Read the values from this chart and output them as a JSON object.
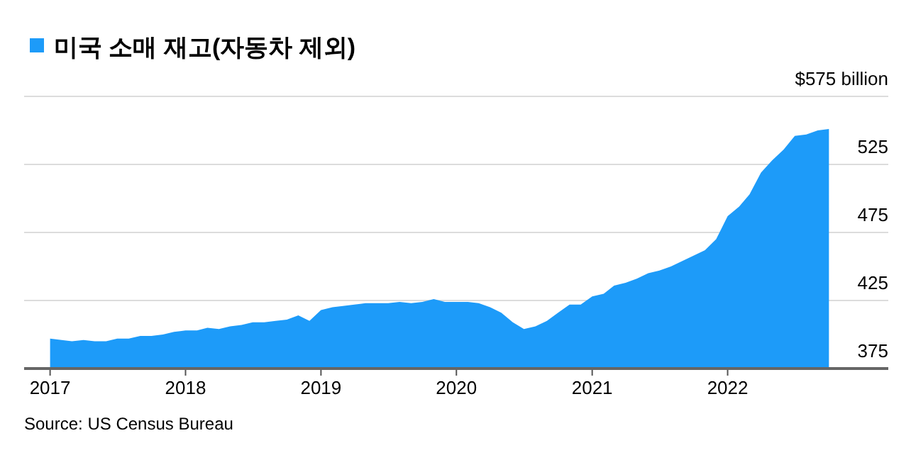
{
  "chart_data": {
    "type": "area",
    "x": [
      "2017-01",
      "2017-02",
      "2017-03",
      "2017-04",
      "2017-05",
      "2017-06",
      "2017-07",
      "2017-08",
      "2017-09",
      "2017-10",
      "2017-11",
      "2017-12",
      "2018-01",
      "2018-02",
      "2018-03",
      "2018-04",
      "2018-05",
      "2018-06",
      "2018-07",
      "2018-08",
      "2018-09",
      "2018-10",
      "2018-11",
      "2018-12",
      "2019-01",
      "2019-02",
      "2019-03",
      "2019-04",
      "2019-05",
      "2019-06",
      "2019-07",
      "2019-08",
      "2019-09",
      "2019-10",
      "2019-11",
      "2019-12",
      "2020-01",
      "2020-02",
      "2020-03",
      "2020-04",
      "2020-05",
      "2020-06",
      "2020-07",
      "2020-08",
      "2020-09",
      "2020-10",
      "2020-11",
      "2020-12",
      "2021-01",
      "2021-02",
      "2021-03",
      "2021-04",
      "2021-05",
      "2021-06",
      "2021-07",
      "2021-08",
      "2021-09",
      "2021-10",
      "2021-11",
      "2021-12",
      "2022-01",
      "2022-02",
      "2022-03",
      "2022-04",
      "2022-05",
      "2022-06",
      "2022-07",
      "2022-08",
      "2022-09",
      "2022-10"
    ],
    "series": [
      {
        "name": "미국 소매 재고(자동차 제외)",
        "color": "#1d9bf9",
        "values": [
          397,
          396,
          395,
          396,
          395,
          395,
          397,
          397,
          399,
          399,
          400,
          402,
          403,
          403,
          405,
          404,
          406,
          407,
          409,
          409,
          410,
          411,
          414,
          410,
          418,
          420,
          421,
          422,
          423,
          423,
          423,
          424,
          423,
          424,
          426,
          424,
          424,
          424,
          423,
          420,
          416,
          409,
          404,
          406,
          410,
          416,
          422,
          422,
          428,
          430,
          436,
          438,
          441,
          445,
          447,
          450,
          454,
          458,
          462,
          470,
          487,
          494,
          503,
          519,
          528,
          536,
          546,
          547,
          550,
          551
        ]
      }
    ],
    "xlim": [
      "2016-10-23",
      "2023-03-10"
    ],
    "xticks": [
      "2017",
      "2018",
      "2019",
      "2020",
      "2021",
      "2022"
    ],
    "ylim": [
      375,
      575
    ],
    "yticks": [
      375,
      425,
      475,
      525,
      {
        "value": 575,
        "label": "$575 billion"
      }
    ],
    "grid": "y",
    "legend": "top left",
    "annotations": [
      "Source: US Census Bureau"
    ]
  }
}
